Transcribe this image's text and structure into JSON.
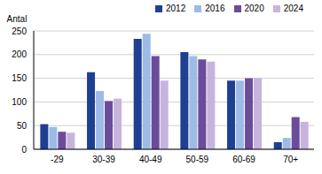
{
  "chart_data": {
    "type": "bar",
    "y_label": "Antal",
    "categories": [
      "-29",
      "30-39",
      "40-49",
      "50-59",
      "60-69",
      "70+"
    ],
    "series": [
      {
        "name": "2012",
        "color": "#1f3f93",
        "values": [
          53,
          163,
          233,
          205,
          145,
          15
        ]
      },
      {
        "name": "2016",
        "color": "#9dbbe6",
        "values": [
          47,
          123,
          244,
          197,
          145,
          24
        ]
      },
      {
        "name": "2020",
        "color": "#6b4c9a",
        "values": [
          37,
          102,
          197,
          190,
          150,
          68
        ]
      },
      {
        "name": "2024",
        "color": "#c7b4dd",
        "values": [
          35,
          107,
          145,
          185,
          150,
          58
        ]
      }
    ],
    "ylim": [
      0,
      250
    ],
    "yticks": [
      0,
      50,
      100,
      150,
      200,
      250
    ],
    "grid": true,
    "legend": "top-right"
  }
}
